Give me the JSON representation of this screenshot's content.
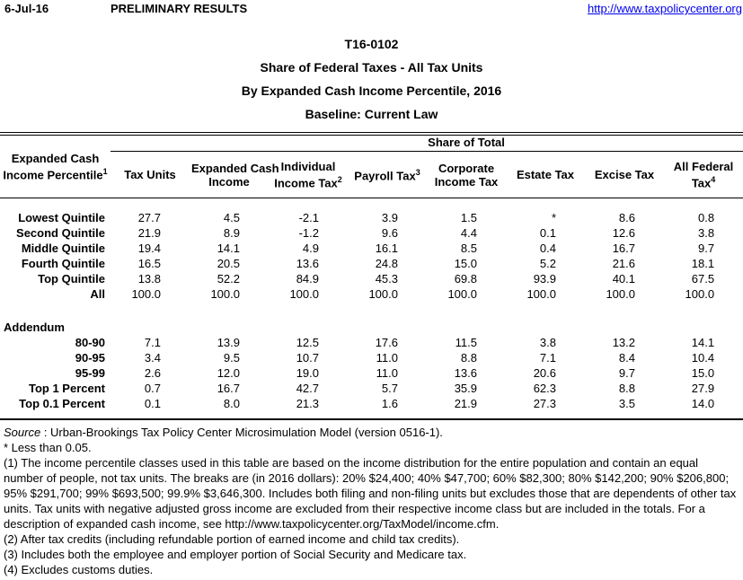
{
  "header": {
    "date": "6-Jul-16",
    "status": "PRELIMINARY RESULTS",
    "link": "http://www.taxpolicycenter.org"
  },
  "title": {
    "table_id": "T16-0102",
    "subtitle1": "Share of Federal Taxes - All Tax Units",
    "subtitle2": "By Expanded Cash Income Percentile, 2016",
    "subtitle3": "Baseline: Current Law"
  },
  "table": {
    "group_header": "Share of Total",
    "row_header": {
      "l1": "Expanded Cash",
      "l2": "Income Percentile",
      "s2": "1"
    },
    "columns": [
      {
        "l1": "Tax Units",
        "s1": "",
        "l2": "",
        "s2": ""
      },
      {
        "l1": "Expanded Cash",
        "s1": "",
        "l2": "Income",
        "s2": ""
      },
      {
        "l1": "Individual",
        "s1": "",
        "l2": "Income Tax",
        "s2": "2"
      },
      {
        "l1": "Payroll Tax",
        "s1": "3",
        "l2": "",
        "s2": ""
      },
      {
        "l1": "Corporate",
        "s1": "",
        "l2": "Income Tax",
        "s2": ""
      },
      {
        "l1": "Estate Tax",
        "s1": "",
        "l2": "",
        "s2": ""
      },
      {
        "l1": "Excise Tax",
        "s1": "",
        "l2": "",
        "s2": ""
      },
      {
        "l1": "All Federal",
        "s1": "",
        "l2": "Tax",
        "s2": "4"
      }
    ],
    "rows": [
      {
        "label": "Lowest Quintile",
        "values": [
          "27.7",
          "4.5",
          "-2.1",
          "3.9",
          "1.5",
          "*",
          "8.6",
          "0.8"
        ]
      },
      {
        "label": "Second Quintile",
        "values": [
          "21.9",
          "8.9",
          "-1.2",
          "9.6",
          "4.4",
          "0.1",
          "12.6",
          "3.8"
        ]
      },
      {
        "label": "Middle Quintile",
        "values": [
          "19.4",
          "14.1",
          "4.9",
          "16.1",
          "8.5",
          "0.4",
          "16.7",
          "9.7"
        ]
      },
      {
        "label": "Fourth Quintile",
        "values": [
          "16.5",
          "20.5",
          "13.6",
          "24.8",
          "15.0",
          "5.2",
          "21.6",
          "18.1"
        ]
      },
      {
        "label": "Top Quintile",
        "values": [
          "13.8",
          "52.2",
          "84.9",
          "45.3",
          "69.8",
          "93.9",
          "40.1",
          "67.5"
        ]
      },
      {
        "label": "All",
        "values": [
          "100.0",
          "100.0",
          "100.0",
          "100.0",
          "100.0",
          "100.0",
          "100.0",
          "100.0"
        ]
      }
    ],
    "addendum_label": "Addendum",
    "addendum_rows": [
      {
        "label": "80-90",
        "values": [
          "7.1",
          "13.9",
          "12.5",
          "17.6",
          "11.5",
          "3.8",
          "13.2",
          "14.1"
        ]
      },
      {
        "label": "90-95",
        "values": [
          "3.4",
          "9.5",
          "10.7",
          "11.0",
          "8.8",
          "7.1",
          "8.4",
          "10.4"
        ]
      },
      {
        "label": "95-99",
        "values": [
          "2.6",
          "12.0",
          "19.0",
          "11.0",
          "13.6",
          "20.6",
          "9.7",
          "15.0"
        ]
      },
      {
        "label": "Top 1 Percent",
        "values": [
          "0.7",
          "16.7",
          "42.7",
          "5.7",
          "35.9",
          "62.3",
          "8.8",
          "27.9"
        ]
      },
      {
        "label": "Top 0.1 Percent",
        "values": [
          "0.1",
          "8.0",
          "21.3",
          "1.6",
          "21.9",
          "27.3",
          "3.5",
          "14.0"
        ]
      }
    ]
  },
  "footnotes": {
    "source_label": "Source",
    "source_text": " : Urban-Brookings Tax Policy Center Microsimulation Model (version 0516-1).",
    "asterisk": "* Less than 0.05.",
    "note1": "(1) The income percentile classes used in this table are based on the income distribution for the entire population and contain an equal number of people, not tax units. The breaks are (in 2016 dollars): 20% $24,400; 40% $47,700; 60% $82,300; 80% $142,200; 90% $206,800; 95% $291,700; 99% $693,500; 99.9% $3,646,300. Includes both filing and non-filing units but excludes those that are dependents of other tax units. Tax units with negative adjusted gross income are excluded from their respective income class but are included in the totals. For a description of expanded cash income, see http://www.taxpolicycenter.org/TaxModel/income.cfm.",
    "note2": "(2) After tax credits (including refundable portion of earned income and child tax credits).",
    "note3": "(3) Includes both the employee and employer portion of Social Security and Medicare tax.",
    "note4": "(4) Excludes customs duties."
  },
  "colors": {
    "link": "#0000EE",
    "text": "#000000",
    "background": "#FFFFFF"
  }
}
